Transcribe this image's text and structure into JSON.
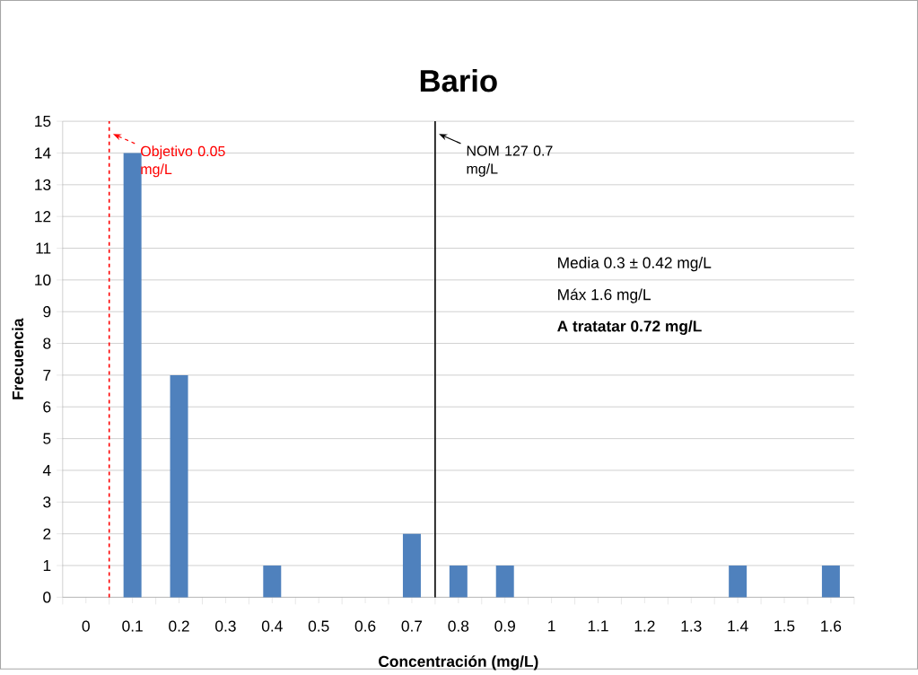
{
  "chart_data": {
    "type": "bar",
    "title": "Bario",
    "xlabel": "Concentración (mg/L)",
    "ylabel": "Frecuencia",
    "x": [
      0,
      0.1,
      0.2,
      0.3,
      0.4,
      0.5,
      0.6,
      0.7,
      0.8,
      0.9,
      1,
      1.1,
      1.2,
      1.3,
      1.4,
      1.5,
      1.6
    ],
    "values": [
      0,
      14,
      7,
      0,
      1,
      0,
      0,
      2,
      1,
      1,
      0,
      0,
      0,
      0,
      1,
      0,
      1
    ],
    "color": "#4f81bd",
    "xlim": [
      -0.05,
      1.65
    ],
    "xticks": [
      0,
      0.1,
      0.2,
      0.3,
      0.4,
      0.5,
      0.6,
      0.7,
      0.8,
      0.9,
      1,
      1.1,
      1.2,
      1.3,
      1.4,
      1.5,
      1.6,
      {
        "value": -0.05,
        "label": null
      },
      {
        "value": 0.05,
        "label": null
      },
      {
        "value": 0.15,
        "label": null
      },
      {
        "value": 0.25,
        "label": null
      },
      {
        "value": 0.35,
        "label": null
      },
      {
        "value": 0.45,
        "label": null
      },
      {
        "value": 0.55,
        "label": null
      },
      {
        "value": 0.65,
        "label": null
      },
      {
        "value": 0.75,
        "label": null
      },
      {
        "value": 0.85,
        "label": null
      },
      {
        "value": 0.95,
        "label": null
      },
      {
        "value": 1.05,
        "label": null
      },
      {
        "value": 1.15,
        "label": null
      },
      {
        "value": 1.25,
        "label": null
      },
      {
        "value": 1.35,
        "label": null
      },
      {
        "value": 1.45,
        "label": null
      },
      {
        "value": 1.55,
        "label": null
      },
      {
        "value": 1.65,
        "label": null
      }
    ],
    "ylim": [
      0,
      15
    ],
    "yticks": [
      0,
      1,
      2,
      3,
      4,
      5,
      6,
      7,
      8,
      9,
      10,
      11,
      12,
      13,
      14,
      15
    ],
    "grid": "y",
    "ref_lines": [
      {
        "axis": "x",
        "value": 0.05,
        "label": "Objetivo 0.05 mg/L",
        "color": "#ff0000",
        "line_style": "dashed"
      },
      {
        "axis": "x",
        "value": 0.75,
        "label": "NOM 127 0.7 mg/L",
        "color": "#000000",
        "line_style": "solid"
      }
    ],
    "annotations": [
      "Media 0.3 ± 0.42 mg/L",
      "Máx 1.6 mg/L",
      "**A tratatar 0.72 mg/L**"
    ]
  }
}
